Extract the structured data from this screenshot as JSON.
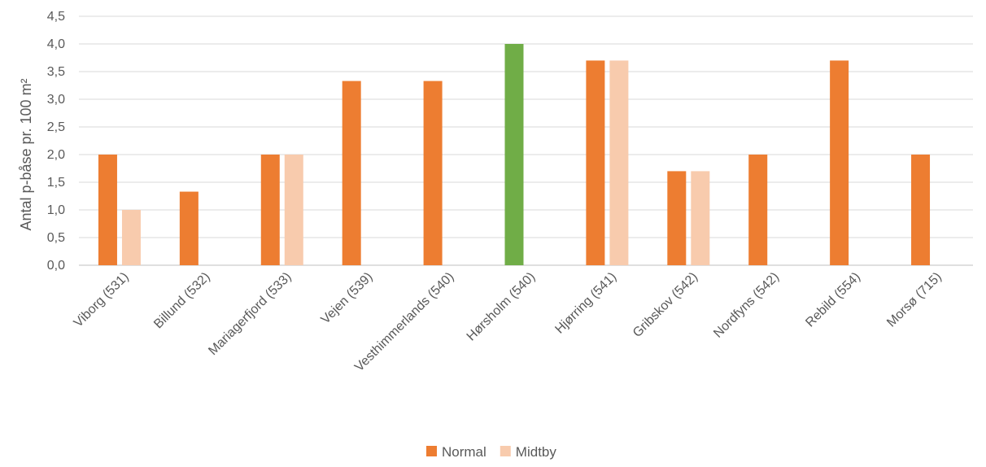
{
  "chart_data": {
    "type": "bar",
    "title": "",
    "xlabel": "",
    "ylabel": "Antal p-båse pr. 100 m²",
    "ylim": [
      0,
      4.5
    ],
    "y_ticks": [
      "0,0",
      "0,5",
      "1,0",
      "1,5",
      "2,0",
      "2,5",
      "3,0",
      "3,5",
      "4,0",
      "4,5"
    ],
    "grid": true,
    "legend_position": "bottom",
    "categories": [
      "Viborg (531)",
      "Billund (532)",
      "Mariagerfjord (533)",
      "Vejen (539)",
      "Vesthimmerlands (540)",
      "Hørsholm (540)",
      "Hjørring (541)",
      "Gribskov (542)",
      "Nordfyns (542)",
      "Rebild (554)",
      "Morsø (715)"
    ],
    "series": [
      {
        "name": "Normal",
        "color": "#ED7D31",
        "values": [
          2.0,
          1.33,
          2.0,
          3.33,
          3.33,
          4.0,
          3.7,
          1.7,
          2.0,
          3.7,
          2.0
        ]
      },
      {
        "name": "Midtby",
        "color": "#F8CBAD",
        "values": [
          1.0,
          null,
          2.0,
          null,
          null,
          null,
          3.7,
          1.7,
          null,
          null,
          null
        ]
      }
    ],
    "highlight": {
      "category_index": 5,
      "series_index": 0,
      "color": "#70AD47"
    },
    "gridline_color": "#D9D9D9",
    "axis_color": "#BFBFBF"
  }
}
